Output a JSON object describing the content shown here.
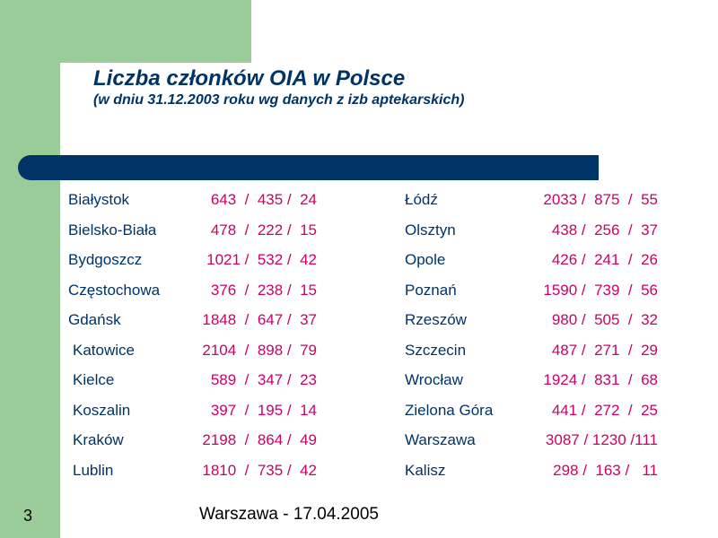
{
  "title": "Liczba członków OIA w Polsce",
  "subtitle": "(w dniu 31.12.2003 roku wg danych z izb aptekarskich)",
  "left_rows": [
    {
      "city": "Białystok",
      "values": "643  /  435 /  24"
    },
    {
      "city": "Bielsko-Biała",
      "values": "478  /  222 /  15"
    },
    {
      "city": "Bydgoszcz",
      "values": "1021 /  532 /  42"
    },
    {
      "city": "Częstochowa",
      "values": "376  /  238 /  15"
    },
    {
      "city": "Gdańsk",
      "values": "1848  /  647 /  37"
    },
    {
      "city": "Katowice",
      "values": "2104  /  898 /  79"
    },
    {
      "city": "Kielce",
      "values": "589  /  347 /  23"
    },
    {
      "city": "Koszalin",
      "values": "397  /  195 /  14"
    },
    {
      "city": "Kraków",
      "values": "2198  /  864 /  49"
    },
    {
      "city": "Lublin",
      "values": "1810  /  735 /  42"
    }
  ],
  "right_rows": [
    {
      "city": "Łódź",
      "values": "2033 /  875  /  55"
    },
    {
      "city": "Olsztyn",
      "values": "438 /  256  /  37"
    },
    {
      "city": "Opole",
      "values": "426 /  241  /  26"
    },
    {
      "city": "Poznań",
      "values": "1590 /  739  /  56"
    },
    {
      "city": "Rzeszów",
      "values": "980 /  505  /  32"
    },
    {
      "city": "Szczecin",
      "values": "487 /  271  /  29"
    },
    {
      "city": "Wrocław",
      "values": "1924 /  831  /  68"
    },
    {
      "city": "Zielona Góra",
      "values": "441 /  272  /  25"
    },
    {
      "city": "Warszawa",
      "values": "3087 / 1230 /111"
    },
    {
      "city": "Kalisz",
      "values": "298 /  163 /   11"
    }
  ],
  "page_number": "3",
  "footer": "Warszawa - 17.04.2005",
  "colors": {
    "green_band": "#99cc99",
    "title": "#003366",
    "bar": "#003366",
    "values": "#cc0066"
  }
}
